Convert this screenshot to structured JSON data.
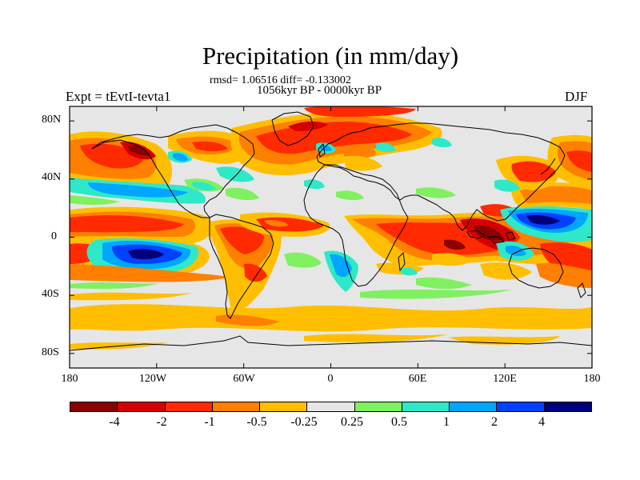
{
  "figure": {
    "title": "Precipitation (in mm/day)",
    "stats_line": "rmsd= 1.06516 diff= -0.133002",
    "period_line": "1056kyr BP - 0000kyr BP",
    "experiment_label": "Expt = tEvtI-tevta1",
    "season_label": "DJF"
  },
  "map": {
    "projection": "cylindrical equidistant",
    "lon_ticks": [
      "180",
      "120W",
      "60W",
      "0",
      "60E",
      "120E",
      "180"
    ],
    "lat_ticks": [
      "80N",
      "40N",
      "0",
      "40S",
      "80S"
    ],
    "lon_tick_values": [
      -180,
      -120,
      -60,
      0,
      60,
      120,
      180
    ],
    "lat_tick_values": [
      80,
      40,
      0,
      -40,
      -80
    ],
    "extent": {
      "lon": [
        -180,
        180
      ],
      "lat": [
        -90,
        90
      ]
    },
    "background_color": "#e6e6e6",
    "coastline_color": "#000000"
  },
  "colorbar": {
    "levels": [
      "-4",
      "-2",
      "-1",
      "-0.5",
      "-0.25",
      "0.25",
      "0.5",
      "1",
      "2",
      "4"
    ],
    "level_values": [
      -4,
      -2,
      -1,
      -0.5,
      -0.25,
      0.25,
      0.5,
      1,
      2,
      4
    ],
    "colors": [
      "#8b0000",
      "#d40000",
      "#ff2a00",
      "#ff7f00",
      "#ffbf00",
      "#e6e6e6",
      "#80f060",
      "#2ee8c8",
      "#00a6ff",
      "#0040ff",
      "#00007a"
    ]
  }
}
